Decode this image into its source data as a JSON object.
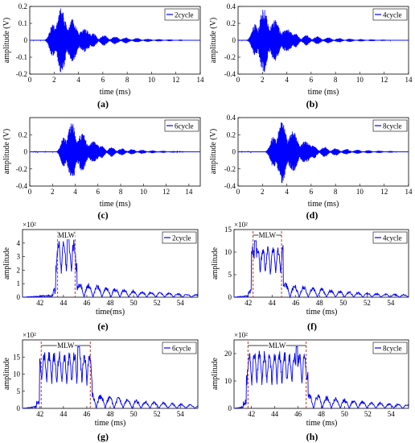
{
  "figure": {
    "series_color": "#0000ff",
    "marker_color": "#c0392b"
  },
  "chart_data": [
    {
      "id": "a",
      "type": "line",
      "caption": "(a)",
      "xlabel": "time (ms)",
      "ylabel": "amplitude (V)",
      "xlim": [
        0,
        14
      ],
      "ylim": [
        -0.2,
        0.2
      ],
      "xticks": [
        "0",
        "2",
        "4",
        "6",
        "8",
        "10",
        "12",
        "14"
      ],
      "yticks": [
        "-0.2",
        "-0.1",
        "0",
        "0.1",
        "0.2"
      ],
      "scale_note": "",
      "series": [
        {
          "name": "2cycle",
          "kind": "signal",
          "t_start": 0.3,
          "t_end": 12.5,
          "peak_time": 2.6,
          "peak_amplitude": 0.195
        }
      ]
    },
    {
      "id": "b",
      "type": "line",
      "caption": "(b)",
      "xlabel": "time (ms)",
      "ylabel": "amplitude (V)",
      "xlim": [
        0,
        14
      ],
      "ylim": [
        -0.4,
        0.4
      ],
      "xticks": [
        "0",
        "2",
        "4",
        "6",
        "8",
        "10",
        "12",
        "14"
      ],
      "yticks": [
        "-0.4",
        "-0.2",
        "0",
        "0.2",
        "0.4"
      ],
      "scale_note": "",
      "series": [
        {
          "name": "4cycle",
          "kind": "signal",
          "t_start": 0.3,
          "t_end": 12.5,
          "peak_time": 2.1,
          "peak_amplitude": 0.39
        }
      ]
    },
    {
      "id": "c",
      "type": "line",
      "caption": "(c)",
      "xlabel": "time (ms)",
      "ylabel": "amplitude (V)",
      "xlim": [
        0,
        15
      ],
      "ylim": [
        -0.4,
        0.4
      ],
      "xticks": [
        "0",
        "2",
        "4",
        "6",
        "8",
        "10",
        "12",
        "14"
      ],
      "yticks": [
        "-0.4",
        "-0.2",
        "0",
        "0.2"
      ],
      "scale_note": "",
      "series": [
        {
          "name": "6cycle",
          "kind": "signal",
          "t_start": 0.3,
          "t_end": 13.5,
          "peak_time": 3.7,
          "peak_amplitude": 0.35
        }
      ]
    },
    {
      "id": "d",
      "type": "line",
      "caption": "(d)",
      "xlabel": "time (ms)",
      "ylabel": "amplitude (V)",
      "xlim": [
        0,
        14
      ],
      "ylim": [
        -0.4,
        0.4
      ],
      "xticks": [
        "0",
        "2",
        "4",
        "6",
        "8",
        "10",
        "12",
        "14"
      ],
      "yticks": [
        "-0.4",
        "-0.2",
        "0",
        "0.2",
        "0.4"
      ],
      "scale_note": "",
      "series": [
        {
          "name": "8cycle",
          "kind": "signal",
          "t_start": 0.3,
          "t_end": 13.0,
          "peak_time": 3.6,
          "peak_amplitude": 0.37
        }
      ]
    },
    {
      "id": "e",
      "type": "line",
      "caption": "(e)",
      "xlabel": "time(ms)",
      "ylabel": "amplitude",
      "xlim": [
        40.5,
        55.5
      ],
      "ylim": [
        0,
        500
      ],
      "xticks": [
        "42",
        "44",
        "46",
        "48",
        "50",
        "52",
        "54"
      ],
      "yticks": [
        "0",
        "1",
        "2",
        "3",
        "4"
      ],
      "scale_note": "×10²",
      "mlw": {
        "label": "MLW",
        "x_start": 43.5,
        "x_end": 45.0
      },
      "series": [
        {
          "name": "2cycle",
          "kind": "spectrum",
          "peak_x": 44.4,
          "peak_value": 460
        }
      ]
    },
    {
      "id": "f",
      "type": "line",
      "caption": "(f)",
      "xlabel": "time (ms)",
      "ylabel": "amplitude",
      "xlim": [
        40.8,
        55.5
      ],
      "ylim": [
        0,
        1500
      ],
      "xticks": [
        "42",
        "44",
        "46",
        "48",
        "50",
        "52",
        "54"
      ],
      "yticks": [
        "0",
        "5",
        "10",
        "15"
      ],
      "scale_note": "×10²",
      "mlw": {
        "label": "MLW",
        "x_start": 42.4,
        "x_end": 44.8
      },
      "series": [
        {
          "name": "4cycle",
          "kind": "spectrum",
          "peak_x": 42.6,
          "peak_value": 1250
        }
      ]
    },
    {
      "id": "g",
      "type": "line",
      "caption": "(g)",
      "xlabel": "time (ms)",
      "ylabel": "amplitude",
      "xlim": [
        40.5,
        55.5
      ],
      "ylim": [
        0,
        2000
      ],
      "xticks": [
        "42",
        "44",
        "46",
        "48",
        "50",
        "52",
        "54"
      ],
      "yticks": [
        "0",
        "5",
        "10",
        "15"
      ],
      "scale_note": "×10²",
      "mlw": {
        "label": "MLW",
        "x_start": 42.1,
        "x_end": 46.3
      },
      "series": [
        {
          "name": "6cycle",
          "kind": "spectrum",
          "peak_x": 45.3,
          "peak_value": 1800
        }
      ]
    },
    {
      "id": "h",
      "type": "line",
      "caption": "(h)",
      "xlabel": "time (ms)",
      "ylabel": "amplitude",
      "xlim": [
        40.5,
        55.5
      ],
      "ylim": [
        0,
        2500
      ],
      "xticks": [
        "42",
        "44",
        "46",
        "48",
        "50",
        "52",
        "54"
      ],
      "yticks": [
        "0",
        "10",
        "20"
      ],
      "scale_note": "×10²",
      "mlw": {
        "label": "MLW",
        "x_start": 41.7,
        "x_end": 46.7
      },
      "series": [
        {
          "name": "8cycle",
          "kind": "spectrum",
          "peak_x": 45.9,
          "peak_value": 2250
        }
      ]
    }
  ]
}
